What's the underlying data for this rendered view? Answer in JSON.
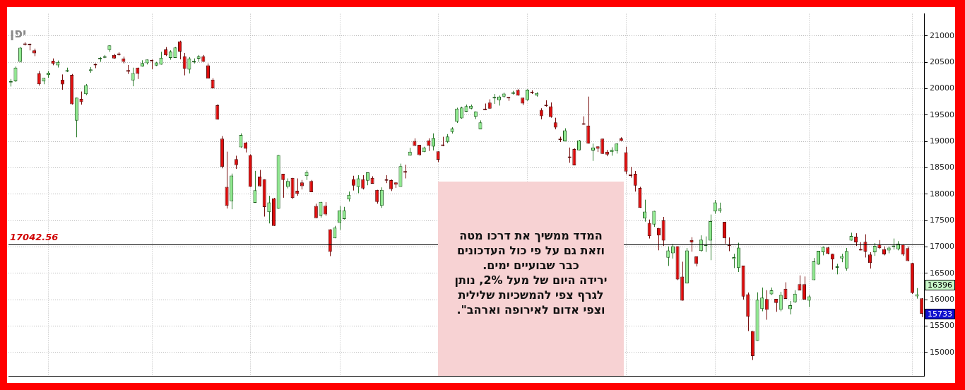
{
  "chart_data": {
    "type": "candlestick",
    "title": "יפן",
    "categories": [
      null,
      null,
      null,
      null,
      null,
      null,
      null,
      null,
      null,
      null,
      null,
      null,
      null,
      null,
      null,
      null,
      null,
      null,
      null,
      null,
      null,
      null,
      null,
      null,
      null,
      null,
      null,
      null,
      null,
      null,
      null,
      null,
      null,
      null,
      null,
      null,
      null,
      null,
      null,
      null,
      null,
      null,
      null,
      null,
      null,
      null,
      null,
      null,
      null,
      null,
      null,
      null,
      null,
      null,
      null,
      null,
      null,
      null,
      null,
      null,
      null,
      null,
      null,
      null,
      null,
      null,
      null,
      null,
      null,
      null,
      null,
      null,
      null,
      null,
      null,
      null,
      null,
      null,
      null,
      null,
      null,
      null,
      null,
      null,
      null,
      null,
      null,
      null,
      null,
      null,
      null,
      null,
      null,
      null,
      null,
      null,
      null,
      null,
      null,
      null,
      null,
      null,
      null,
      null,
      null,
      null,
      null,
      null,
      null,
      null,
      null,
      null,
      null,
      null,
      null,
      null,
      null,
      null,
      null,
      null,
      null,
      null,
      null,
      null,
      null,
      null,
      null,
      null,
      null,
      null,
      null,
      null,
      null,
      null,
      null,
      null,
      null,
      null,
      null,
      null,
      null,
      null,
      null,
      null,
      null,
      null,
      null,
      null,
      null,
      null,
      null,
      null,
      null,
      null,
      null,
      null,
      null,
      null,
      null,
      null,
      null,
      null,
      null,
      null,
      null,
      null,
      null,
      null,
      null,
      null,
      null,
      null,
      null,
      null,
      null,
      null,
      null,
      null,
      null,
      null,
      null,
      null,
      null,
      null,
      null,
      null,
      null,
      null,
      null,
      null,
      null,
      null,
      null,
      null,
      null
    ],
    "ohlc": [
      [
        20120,
        20185,
        20042,
        20146
      ],
      [
        20141,
        20420,
        20130,
        20401
      ],
      [
        20510,
        20790,
        20500,
        20779
      ],
      [
        20857,
        20880,
        20820,
        20831
      ],
      [
        20835,
        20857,
        20727,
        20825
      ],
      [
        20727,
        20761,
        20618,
        20670
      ],
      [
        20289,
        20336,
        20059,
        20085
      ],
      [
        20137,
        20206,
        20085,
        20206
      ],
      [
        20259,
        20336,
        20206,
        20302
      ],
      [
        20532,
        20575,
        20445,
        20475
      ],
      [
        20445,
        20535,
        20402,
        20506
      ],
      [
        20172,
        20271,
        19981,
        20081
      ],
      [
        20324,
        20400,
        20315,
        20354
      ],
      [
        20263,
        20280,
        19700,
        19708
      ],
      [
        19396,
        19829,
        19080,
        19829
      ],
      [
        19808,
        19947,
        19699,
        19747
      ],
      [
        19899,
        20090,
        19880,
        20068
      ],
      [
        20337,
        20411,
        20302,
        20367
      ],
      [
        20467,
        20480,
        20390,
        20445
      ],
      [
        20562,
        20600,
        20510,
        20575
      ],
      [
        20588,
        20640,
        20580,
        20614
      ],
      [
        20735,
        20822,
        20700,
        20822
      ],
      [
        20640,
        20660,
        20570,
        20575
      ],
      [
        20666,
        20690,
        20630,
        20640
      ],
      [
        20575,
        20610,
        20480,
        20510
      ],
      [
        20354,
        20450,
        20280,
        20324
      ],
      [
        20159,
        20400,
        20047,
        20297
      ],
      [
        20401,
        20401,
        20185,
        20284
      ],
      [
        20419,
        20540,
        20419,
        20488
      ],
      [
        20484,
        20553,
        20460,
        20553
      ],
      [
        20525,
        20553,
        20371,
        20520
      ],
      [
        20441,
        20510,
        20430,
        20497
      ],
      [
        20458,
        20700,
        20458,
        20588
      ],
      [
        20744,
        20790,
        20620,
        20635
      ],
      [
        20584,
        20730,
        20550,
        20705
      ],
      [
        20584,
        20790,
        20584,
        20783
      ],
      [
        20900,
        20910,
        20557,
        20705
      ],
      [
        20614,
        20679,
        20254,
        20376
      ],
      [
        20362,
        20600,
        20290,
        20575
      ],
      [
        20500,
        20575,
        20480,
        20510
      ],
      [
        20571,
        20640,
        20510,
        20610
      ],
      [
        20614,
        20640,
        20510,
        20510
      ],
      [
        20445,
        20480,
        20193,
        20193
      ],
      [
        20172,
        20200,
        20009,
        20009
      ],
      [
        19686,
        19710,
        19414,
        19414
      ],
      [
        19054,
        19102,
        18490,
        18517
      ],
      [
        18140,
        18807,
        17728,
        17780
      ],
      [
        17867,
        18391,
        17715,
        18352
      ],
      [
        18664,
        18730,
        18480,
        18551
      ],
      [
        18889,
        19154,
        18880,
        19123
      ],
      [
        18980,
        18990,
        18792,
        18863
      ],
      [
        18742,
        18755,
        18140,
        18140
      ],
      [
        17836,
        18443,
        17836,
        18075
      ],
      [
        18335,
        18460,
        18148,
        18148
      ],
      [
        18283,
        18283,
        17576,
        17758
      ],
      [
        17659,
        17970,
        17446,
        17845
      ],
      [
        17923,
        17930,
        17399,
        17399
      ],
      [
        17724,
        18742,
        17724,
        18742
      ],
      [
        18387,
        18387,
        17933,
        18270
      ],
      [
        18140,
        18300,
        18110,
        18248
      ],
      [
        18309,
        18309,
        17910,
        17927
      ],
      [
        18066,
        18300,
        17970,
        18005
      ],
      [
        18222,
        18270,
        18090,
        18153
      ],
      [
        18343,
        18450,
        18270,
        18417
      ],
      [
        18248,
        18270,
        18040,
        18040
      ],
      [
        17776,
        17820,
        17546,
        17546
      ],
      [
        17596,
        17855,
        17557,
        17855
      ],
      [
        17780,
        17850,
        17590,
        17615
      ],
      [
        17334,
        17334,
        16826,
        16905
      ],
      [
        17165,
        17400,
        17165,
        17364
      ],
      [
        17455,
        17776,
        17325,
        17693
      ],
      [
        17529,
        17760,
        17520,
        17693
      ],
      [
        17901,
        18050,
        17860,
        17988
      ],
      [
        18287,
        18350,
        18070,
        18161
      ],
      [
        18135,
        18360,
        18020,
        18300
      ],
      [
        18283,
        18360,
        18090,
        18109
      ],
      [
        18257,
        18413,
        18170,
        18413
      ],
      [
        18309,
        18340,
        18200,
        18200
      ],
      [
        18083,
        18083,
        17820,
        17855
      ],
      [
        17780,
        18130,
        17740,
        18083
      ],
      [
        18278,
        18360,
        18210,
        18257
      ],
      [
        18265,
        18280,
        18060,
        18096
      ],
      [
        18222,
        18222,
        18120,
        18183
      ],
      [
        18140,
        18580,
        18140,
        18530
      ],
      [
        18420,
        18560,
        18300,
        18410
      ],
      [
        18733,
        18880,
        18733,
        18807
      ],
      [
        19011,
        19060,
        18915,
        18915
      ],
      [
        18937,
        18937,
        18730,
        18742
      ],
      [
        18798,
        18900,
        18798,
        18885
      ],
      [
        19020,
        19060,
        18820,
        18920
      ],
      [
        18902,
        19154,
        18830,
        19067
      ],
      [
        18811,
        18811,
        18610,
        18655
      ],
      [
        18922,
        19089,
        18910,
        18916
      ],
      [
        18993,
        19140,
        18970,
        19093
      ],
      [
        19180,
        19270,
        19150,
        19245
      ],
      [
        19375,
        19640,
        19350,
        19622
      ],
      [
        19440,
        19660,
        19430,
        19644
      ],
      [
        19566,
        19700,
        19560,
        19670
      ],
      [
        19622,
        19700,
        19610,
        19678
      ],
      [
        19470,
        19570,
        19425,
        19570
      ],
      [
        19231,
        19400,
        19231,
        19361
      ],
      [
        19609,
        19720,
        19596,
        19596
      ],
      [
        19738,
        19800,
        19622,
        19622
      ],
      [
        19817,
        19900,
        19713,
        19834
      ],
      [
        19782,
        19870,
        19680,
        19851
      ],
      [
        19851,
        19925,
        19830,
        19908
      ],
      [
        19834,
        19834,
        19770,
        19817
      ],
      [
        19903,
        19960,
        19890,
        19925
      ],
      [
        19977,
        19990,
        19869,
        19869
      ],
      [
        19830,
        19830,
        19690,
        19721
      ],
      [
        19782,
        19990,
        19773,
        19981
      ],
      [
        19938,
        19970,
        19900,
        19916
      ],
      [
        19873,
        19935,
        19850,
        19916
      ],
      [
        19600,
        19630,
        19420,
        19479
      ],
      [
        19687,
        19780,
        19660,
        19669
      ],
      [
        19665,
        19740,
        19450,
        19461
      ],
      [
        19361,
        19450,
        19230,
        19265
      ],
      [
        19054,
        19090,
        18990,
        19028
      ],
      [
        19002,
        19250,
        19000,
        19210
      ],
      [
        18700,
        18885,
        18595,
        18690
      ],
      [
        18855,
        18870,
        18547,
        18547
      ],
      [
        18833,
        19030,
        18833,
        19020
      ],
      [
        19340,
        19477,
        19318,
        19318
      ],
      [
        19301,
        19851,
        18959,
        18959
      ],
      [
        18829,
        18960,
        18632,
        18885
      ],
      [
        18907,
        18907,
        18800,
        18863
      ],
      [
        19054,
        19054,
        18764,
        18764
      ],
      [
        18807,
        18840,
        18720,
        18751
      ],
      [
        18798,
        18890,
        18730,
        18842
      ],
      [
        18820,
        18970,
        18770,
        18959
      ],
      [
        19058,
        19080,
        19011,
        19011
      ],
      [
        18794,
        18900,
        18380,
        18430
      ],
      [
        18378,
        18517,
        18313,
        18348
      ],
      [
        18387,
        18440,
        18050,
        18161
      ],
      [
        18118,
        18140,
        17741,
        17741
      ],
      [
        17541,
        17896,
        17480,
        17671
      ],
      [
        17455,
        17520,
        17160,
        17204
      ],
      [
        17425,
        17684,
        17380,
        17684
      ],
      [
        17360,
        17360,
        16936,
        17217
      ],
      [
        17503,
        17570,
        17020,
        17121
      ],
      [
        16796,
        17010,
        16640,
        16935
      ],
      [
        16879,
        17060,
        16780,
        17013
      ],
      [
        17013,
        17013,
        16372,
        16385
      ],
      [
        16437,
        16720,
        15982,
        15982
      ],
      [
        16307,
        16980,
        16307,
        16935
      ],
      [
        17130,
        17185,
        16910,
        17087
      ],
      [
        16818,
        16818,
        16630,
        16679
      ],
      [
        16922,
        17220,
        16910,
        17139
      ],
      [
        17022,
        17200,
        16905,
        17035
      ],
      [
        17121,
        17615,
        16749,
        17490
      ],
      [
        17672,
        17890,
        17630,
        17845
      ],
      [
        17680,
        17840,
        17650,
        17728
      ],
      [
        17477,
        17477,
        17060,
        17165
      ],
      [
        17052,
        17180,
        16920,
        17022
      ],
      [
        16770,
        16870,
        16600,
        16805
      ],
      [
        16601,
        17080,
        16525,
        16987
      ],
      [
        16645,
        16645,
        16000,
        16060
      ],
      [
        16103,
        16135,
        15405,
        15678
      ],
      [
        15405,
        15405,
        14856,
        14929
      ],
      [
        15219,
        16139,
        15219,
        16000
      ],
      [
        15826,
        16230,
        15780,
        16038
      ],
      [
        16012,
        16180,
        15620,
        15808
      ],
      [
        16103,
        16230,
        16090,
        16177
      ],
      [
        16016,
        16016,
        15770,
        15938
      ],
      [
        15808,
        16150,
        15780,
        16090
      ],
      [
        16207,
        16330,
        16016,
        16016
      ],
      [
        15821,
        15975,
        15720,
        15895
      ],
      [
        15951,
        16180,
        15940,
        16112
      ],
      [
        16294,
        16460,
        16177,
        16177
      ],
      [
        16294,
        16440,
        16003,
        16003
      ],
      [
        15983,
        16090,
        15860,
        16061
      ],
      [
        16372,
        16790,
        16372,
        16727
      ],
      [
        16666,
        16926,
        16666,
        16926
      ],
      [
        16900,
        17010,
        16840,
        17000
      ],
      [
        16991,
        17000,
        16860,
        16870
      ],
      [
        16870,
        16870,
        16570,
        16762
      ],
      [
        16605,
        16680,
        16480,
        16618
      ],
      [
        16783,
        16870,
        16710,
        16827
      ],
      [
        16588,
        16980,
        16550,
        16922
      ],
      [
        17121,
        17270,
        17121,
        17208
      ],
      [
        17195,
        17260,
        17020,
        17087
      ],
      [
        16957,
        17090,
        16935,
        16935
      ],
      [
        17096,
        17240,
        16800,
        16913
      ],
      [
        16857,
        16900,
        16590,
        16697
      ],
      [
        16900,
        17075,
        16830,
        17022
      ],
      [
        17052,
        17130,
        16960,
        16978
      ],
      [
        16957,
        17010,
        16840,
        16861
      ],
      [
        16935,
        17010,
        16880,
        16987
      ],
      [
        17000,
        17160,
        16950,
        17005
      ],
      [
        16957,
        17110,
        16935,
        17065
      ],
      [
        17052,
        17052,
        16830,
        16857
      ],
      [
        16978,
        17010,
        16731,
        16731
      ],
      [
        16697,
        16697,
        16110,
        16125
      ],
      [
        16061,
        16220,
        16020,
        16103
      ],
      [
        16025,
        16030,
        15670,
        15733
      ]
    ],
    "ylim": [
      14550,
      21420
    ],
    "yticks": [
      15000,
      15500,
      16000,
      16500,
      17000,
      17500,
      18000,
      18500,
      19000,
      19500,
      20000,
      20500,
      21000
    ],
    "grid": true,
    "tick_labels": "y",
    "ref_lines": [
      {
        "axis": "y",
        "value": 17042.56,
        "label": "17042.56"
      }
    ],
    "annotations": [
      "המדד  ממשיך  את דרכו מטה\nוזאת גם  על פי  כול העדכונים\nכבר  שבועיים ימים.\nירידה  היום  של  מעל  2%, נותן\nלגרף  צפי  להמשכיות שלילית\nוצפי אדום  לאירופה וארהב\".",
      "16396",
      "15733"
    ]
  }
}
